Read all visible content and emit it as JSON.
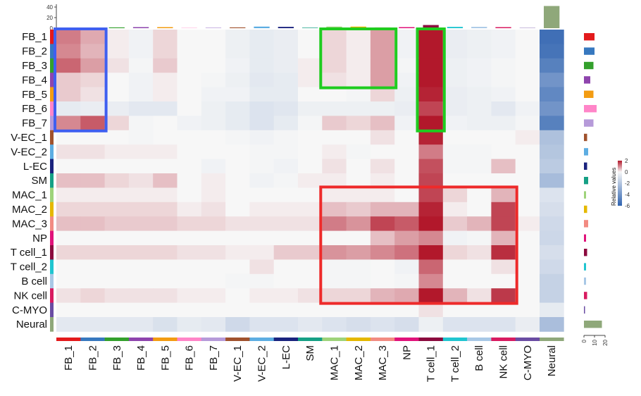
{
  "chart_data": {
    "type": "heatmap",
    "rows": [
      "FB_1",
      "FB_2",
      "FB_3",
      "FB_4",
      "FB_5",
      "FB_6",
      "FB_7",
      "V-EC_1",
      "V-EC_2",
      "L-EC",
      "SM",
      "MAC_1",
      "MAC_2",
      "MAC_3",
      "NP",
      "T cell_1",
      "T cell_2",
      "B cell",
      "NK cell",
      "C-MYO",
      "Neural"
    ],
    "columns": [
      "FB_1",
      "FB_2",
      "FB_3",
      "FB_4",
      "FB_5",
      "FB_6",
      "FB_7",
      "V-EC_1",
      "V-EC_2",
      "L-EC",
      "SM",
      "MAC_1",
      "MAC_2",
      "MAC_3",
      "NP",
      "T cell_1",
      "T cell_2",
      "B cell",
      "NK cell",
      "C-MYO",
      "Neural"
    ],
    "values": [
      [
        1.1,
        0.7,
        0.1,
        -0.2,
        0.3,
        0,
        0,
        -0.3,
        -0.5,
        -0.4,
        0,
        0.3,
        0.1,
        0.8,
        -0.2,
        2.6,
        -0.4,
        -0.3,
        -0.2,
        0,
        -5.5
      ],
      [
        1.0,
        0.6,
        0.1,
        -0.2,
        0.3,
        0,
        0,
        -0.3,
        -0.5,
        -0.4,
        0,
        0.3,
        0.1,
        0.8,
        -0.2,
        2.6,
        -0.4,
        -0.3,
        -0.2,
        0,
        -5.3
      ],
      [
        1.3,
        0.8,
        0.2,
        -0.1,
        0.4,
        0,
        0,
        -0.2,
        -0.5,
        -0.4,
        0.1,
        0.3,
        0.1,
        0.8,
        -0.1,
        2.2,
        -0.3,
        -0.2,
        -0.1,
        0,
        -4.8
      ],
      [
        0.4,
        0.3,
        0,
        -0.2,
        0.1,
        0,
        -0.1,
        -0.3,
        -0.6,
        -0.5,
        0.1,
        0.2,
        0.1,
        0.8,
        -0.2,
        2.0,
        -0.3,
        -0.2,
        -0.1,
        0,
        -4.0
      ],
      [
        0.4,
        0.2,
        0,
        -0.2,
        0.1,
        0,
        -0.2,
        -0.2,
        -0.5,
        -0.5,
        0,
        0,
        -0.1,
        0.3,
        -0.3,
        1.9,
        -0.4,
        -0.3,
        -0.2,
        0,
        -4.5
      ],
      [
        -0.5,
        -0.4,
        -0.4,
        -0.6,
        -0.6,
        0,
        -0.3,
        -0.5,
        -0.8,
        -0.7,
        -0.3,
        -0.3,
        -0.3,
        -0.3,
        -0.4,
        1.6,
        -0.4,
        -0.3,
        -0.6,
        -0.2,
        -4.0
      ],
      [
        1.0,
        1.4,
        0.3,
        -0.1,
        0,
        -0.2,
        -0.3,
        -0.5,
        -0.8,
        -0.5,
        -0.1,
        0.4,
        0.3,
        0.5,
        -0.2,
        2.2,
        -0.2,
        -0.3,
        -0.3,
        -0.1,
        -4.8
      ],
      [
        0,
        0,
        0,
        -0.1,
        0,
        0,
        0,
        -0.1,
        -0.2,
        -0.1,
        0,
        0,
        0,
        0.2,
        0,
        1.9,
        0,
        0,
        0,
        0.1,
        -2.2
      ],
      [
        0.2,
        0.2,
        0.1,
        0.1,
        0.1,
        0,
        0,
        0,
        -0.1,
        -0.1,
        0,
        0.1,
        -0.1,
        0,
        0,
        1.1,
        -0.1,
        -0.1,
        0,
        0,
        -2.0
      ],
      [
        0,
        0,
        0,
        0,
        0,
        0,
        -0.2,
        0,
        -0.1,
        -0.2,
        0,
        0.2,
        0,
        0.2,
        0,
        1.5,
        -0.1,
        -0.1,
        0.5,
        0,
        -1.8
      ],
      [
        0.5,
        0.5,
        0.3,
        0.2,
        0.5,
        0,
        0.1,
        0,
        -0.2,
        -0.1,
        0.1,
        0.1,
        0,
        0.1,
        0,
        1.6,
        0,
        0,
        0,
        0,
        -2.4
      ],
      [
        0.1,
        0.1,
        0.1,
        0.1,
        0.1,
        0,
        0.1,
        0,
        0,
        0,
        0,
        0.1,
        0.1,
        0.1,
        0,
        1.6,
        0.3,
        0,
        0.6,
        0,
        -0.8
      ],
      [
        0.3,
        0.3,
        0.3,
        0.3,
        0.3,
        0.1,
        0.2,
        0,
        0.1,
        0.1,
        0.1,
        0.5,
        0.4,
        0.6,
        0.6,
        1.9,
        0.1,
        0,
        1.6,
        0,
        -1.0
      ],
      [
        0.5,
        0.5,
        0.4,
        0.4,
        0.4,
        0.3,
        0.3,
        0.2,
        0.2,
        0.2,
        0.2,
        1.1,
        0.9,
        1.6,
        1.4,
        2.1,
        0.4,
        0.6,
        1.6,
        0.1,
        -1.2
      ],
      [
        0,
        0,
        0,
        0,
        0,
        0,
        0,
        0,
        0,
        0,
        0,
        0,
        0,
        0.5,
        0.8,
        1.0,
        -0.2,
        -0.1,
        0.6,
        0,
        -1.3
      ],
      [
        0.3,
        0.3,
        0.3,
        0.3,
        0.3,
        0.2,
        0.2,
        0.1,
        0.1,
        0.4,
        0.4,
        0.9,
        0.8,
        1.0,
        1.2,
        2.0,
        0.3,
        0.2,
        1.8,
        0,
        -1.0
      ],
      [
        0,
        0,
        0,
        0,
        0,
        0,
        0,
        0,
        0.2,
        0,
        0,
        -0.1,
        -0.1,
        0,
        -0.2,
        1.3,
        0,
        0,
        0.2,
        0,
        -1.2
      ],
      [
        0,
        0,
        0,
        0,
        0,
        0,
        0,
        -0.1,
        -0.1,
        0,
        0,
        -0.1,
        -0.1,
        0,
        -0.1,
        1.0,
        0,
        0,
        0,
        0,
        -1.5
      ],
      [
        0.2,
        0.3,
        0.2,
        0.2,
        0.2,
        0.1,
        0.1,
        0,
        0.1,
        0.1,
        0.2,
        0.3,
        0.3,
        0.6,
        0.7,
        2.1,
        0.6,
        0.2,
        1.7,
        0,
        -1.5
      ],
      [
        0,
        0,
        0,
        0,
        0,
        0,
        0,
        0,
        0,
        0,
        0,
        0,
        0,
        0,
        0,
        0.2,
        0,
        0,
        0,
        0,
        -0.5
      ],
      [
        -0.6,
        -0.6,
        -0.6,
        -0.6,
        -0.9,
        -0.5,
        -0.6,
        -1.2,
        -0.8,
        -0.8,
        -0.6,
        -0.8,
        -1.0,
        -0.8,
        -1.0,
        -0.3,
        -0.8,
        -0.8,
        -0.8,
        -0.4,
        -2.3
      ]
    ],
    "column_bar_values": [
      0.5,
      0.5,
      1.5,
      2,
      2,
      0.5,
      1,
      1.5,
      3,
      2.5,
      1,
      3,
      3,
      1.5,
      2,
      6,
      2.5,
      2.5,
      2,
      0.5,
      42
    ],
    "column_bar_axis_ticks": [
      "0",
      "20",
      "40"
    ],
    "row_bar_values": [
      10,
      10,
      9,
      6,
      9,
      12,
      9,
      3,
      4,
      3,
      4,
      2,
      3,
      4,
      2,
      3,
      2,
      2,
      3,
      1,
      17
    ],
    "row_bar_axis_ticks": [
      "0",
      "10",
      "20"
    ],
    "group_colors": [
      "#e31a1c",
      "#3778bf",
      "#33a02c",
      "#8e44ad",
      "#f39c12",
      "#ff85c8",
      "#b69ad9",
      "#a0522d",
      "#5dade2",
      "#1a237e",
      "#16a085",
      "#9ed37a",
      "#e5b800",
      "#f28b82",
      "#e0127a",
      "#8b0a3e",
      "#20c5d0",
      "#a8c8e6",
      "#d81b60",
      "#6a4ca3",
      "#8fa87a"
    ],
    "colorbar": {
      "title": "Relative values",
      "min": -6,
      "max": 2,
      "ticks": [
        "2",
        "0",
        "-2",
        "-4",
        "-6"
      ]
    },
    "colorscale": {
      "low": "#2f63b0",
      "mid": "#f7f7f7",
      "high": "#b2182b"
    },
    "highlight_boxes": [
      {
        "color": "#3f5ff0",
        "rows": [
          "FB_1",
          "FB_7"
        ],
        "cols": [
          "FB_1",
          "FB_2"
        ]
      },
      {
        "color": "#1fcc1f",
        "rows": [
          "FB_1",
          "FB_4"
        ],
        "cols": [
          "MAC_1",
          "MAC_3"
        ]
      },
      {
        "color": "#1fcc1f",
        "rows": [
          "FB_1",
          "FB_7"
        ],
        "cols": [
          "T cell_1",
          "T cell_1"
        ]
      },
      {
        "color": "#ee2a2a",
        "rows": [
          "MAC_1",
          "NK cell"
        ],
        "cols": [
          "MAC_1",
          "NK cell"
        ]
      }
    ]
  }
}
